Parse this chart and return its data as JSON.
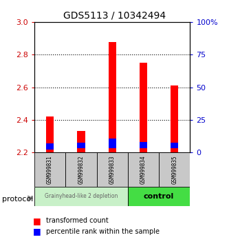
{
  "title": "GDS5113 / 10342494",
  "samples": [
    "GSM999831",
    "GSM999832",
    "GSM999833",
    "GSM999834",
    "GSM999835"
  ],
  "bar_base": 2.2,
  "red_tops": [
    2.42,
    2.33,
    2.875,
    2.75,
    2.61
  ],
  "blue_bottoms": [
    2.22,
    2.225,
    2.228,
    2.225,
    2.228
  ],
  "blue_tops": [
    2.255,
    2.262,
    2.285,
    2.265,
    2.262
  ],
  "left_ylim": [
    2.2,
    3.0
  ],
  "left_yticks": [
    2.2,
    2.4,
    2.6,
    2.8,
    3.0
  ],
  "right_ylim": [
    0,
    100
  ],
  "right_yticks": [
    0,
    25,
    50,
    75,
    100
  ],
  "right_yticklabels": [
    "0",
    "25",
    "50",
    "75",
    "100%"
  ],
  "left_color": "#CC0000",
  "right_color": "#0000CC",
  "bar_width": 0.25,
  "legend_red": "transformed count",
  "legend_blue": "percentile rank within the sample",
  "protocol_label": "protocol",
  "sample_bg": "#C8C8C8",
  "group1_bg": "#C8F0C8",
  "group2_bg": "#44DD44"
}
